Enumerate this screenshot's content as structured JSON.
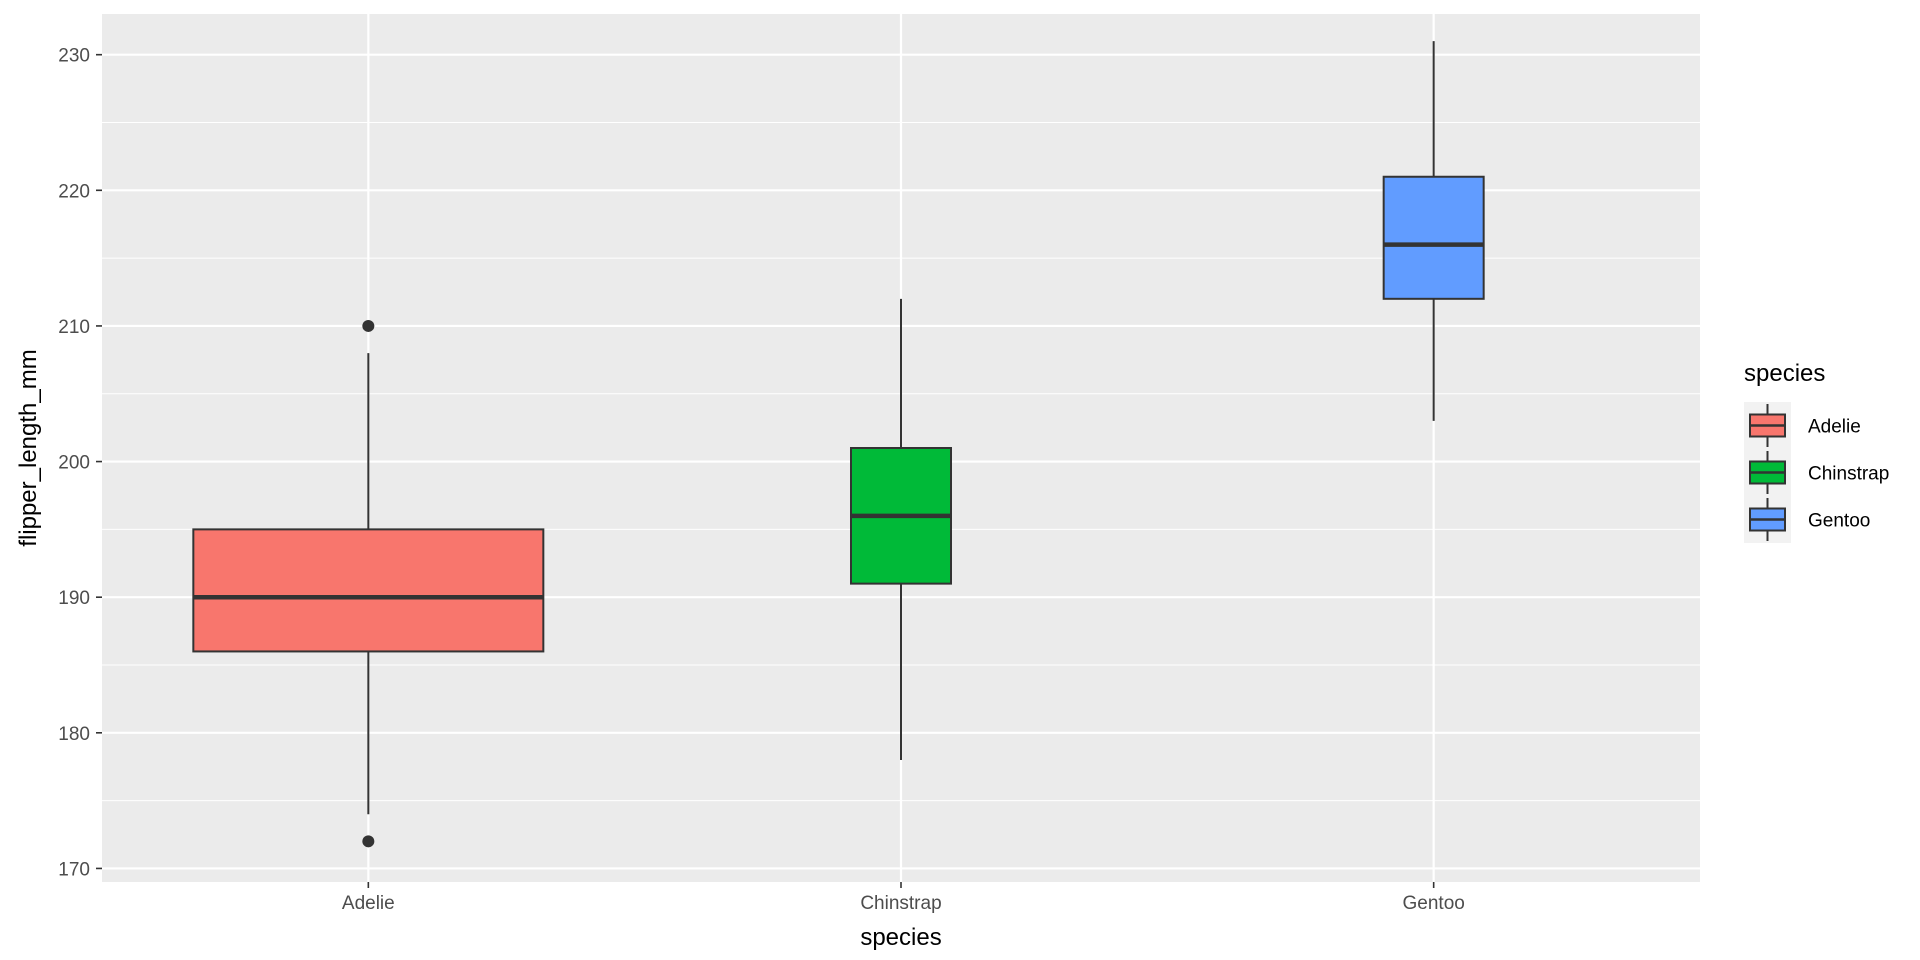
{
  "chart_data": {
    "type": "box",
    "xlabel": "species",
    "ylabel": "flipper_length_mm",
    "ylim": [
      169,
      233
    ],
    "y_ticks": [
      170,
      180,
      190,
      200,
      210,
      220,
      230
    ],
    "y_minor_ticks": [
      175,
      185,
      195,
      205,
      215,
      225
    ],
    "categories": [
      "Adelie",
      "Chinstrap",
      "Gentoo"
    ],
    "boxes": [
      {
        "category": "Adelie",
        "whisker_low": 174,
        "q1": 186,
        "median": 190,
        "q3": 195,
        "whisker_high": 208,
        "outliers": [
          172,
          210
        ],
        "color": "#F8766D"
      },
      {
        "category": "Chinstrap",
        "whisker_low": 178,
        "q1": 191,
        "median": 196,
        "q3": 201,
        "whisker_high": 212,
        "outliers": [],
        "color": "#00BA38"
      },
      {
        "category": "Gentoo",
        "whisker_low": 203,
        "q1": 212,
        "median": 216,
        "q3": 221,
        "whisker_high": 231,
        "outliers": [],
        "color": "#619CFF"
      }
    ],
    "legend": {
      "title": "species",
      "placement": "right",
      "entries": [
        {
          "label": "Adelie",
          "color": "#F8766D"
        },
        {
          "label": "Chinstrap",
          "color": "#00BA38"
        },
        {
          "label": "Gentoo",
          "color": "#619CFF"
        }
      ]
    },
    "grid": true,
    "panel_background": "#EBEBEB",
    "grid_color": "#FFFFFF"
  }
}
